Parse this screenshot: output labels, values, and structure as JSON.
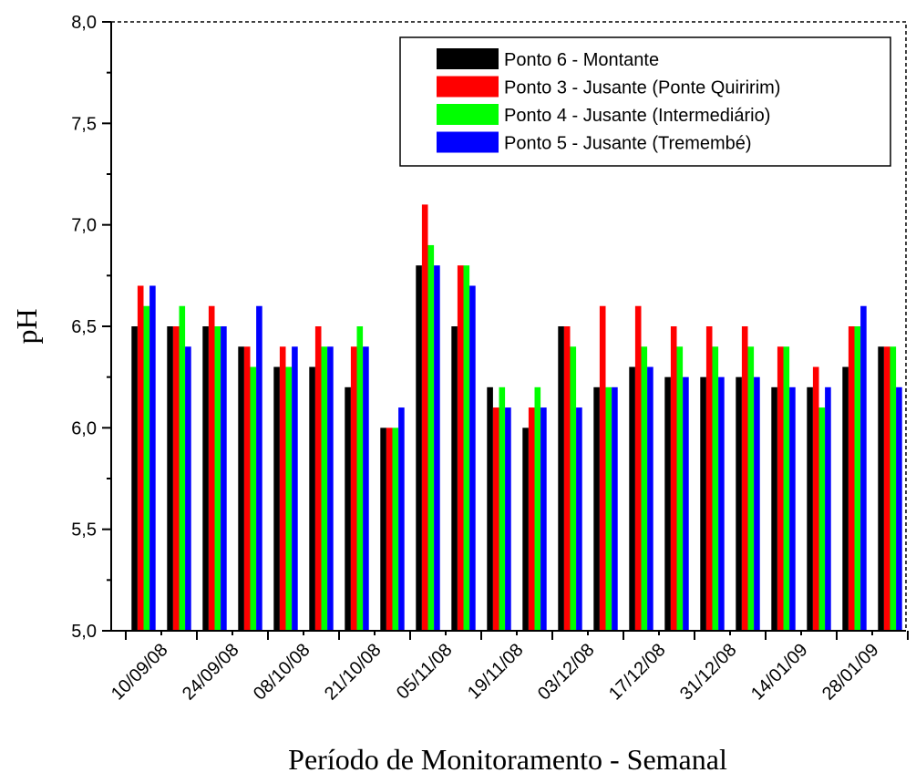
{
  "chart_data": {
    "type": "bar",
    "xlabel": "Período de Monitoramento - Semanal",
    "ylabel": "pH",
    "ylim": [
      5.0,
      8.0
    ],
    "yticks": [
      "5,0",
      "5,5",
      "6,0",
      "6,5",
      "7,0",
      "7,5",
      "8,0"
    ],
    "ytick_values": [
      5.0,
      5.5,
      6.0,
      6.5,
      7.0,
      7.5,
      8.0
    ],
    "x_tick_labels": [
      "10/09/08",
      "24/09/08",
      "08/10/08",
      "21/10/08",
      "05/11/08",
      "19/11/08",
      "03/12/08",
      "17/12/08",
      "31/12/08",
      "14/01/09",
      "28/01/09"
    ],
    "n_groups": 22,
    "grid": false,
    "legend_position": "top-right",
    "series": [
      {
        "name": "Ponto 6 - Montante",
        "color": "#000000",
        "values": [
          6.5,
          6.5,
          6.5,
          6.4,
          6.3,
          6.3,
          6.2,
          6.0,
          6.8,
          6.5,
          6.2,
          6.0,
          6.5,
          6.2,
          6.3,
          6.25,
          6.25,
          6.25,
          6.2,
          6.2,
          6.3,
          6.4
        ]
      },
      {
        "name": "Ponto 3 - Jusante (Ponte Quiririm)",
        "color": "#ff0000",
        "values": [
          6.7,
          6.5,
          6.6,
          6.4,
          6.4,
          6.5,
          6.4,
          6.0,
          7.1,
          6.8,
          6.1,
          6.1,
          6.5,
          6.6,
          6.6,
          6.5,
          6.5,
          6.5,
          6.4,
          6.3,
          6.5,
          6.4
        ]
      },
      {
        "name": "Ponto 4 - Jusante (Intermediário)",
        "color": "#00ff00",
        "values": [
          6.6,
          6.6,
          6.5,
          6.3,
          6.3,
          6.4,
          6.5,
          6.0,
          6.9,
          6.8,
          6.2,
          6.2,
          6.4,
          6.2,
          6.4,
          6.4,
          6.4,
          6.4,
          6.4,
          6.1,
          6.5,
          6.4
        ]
      },
      {
        "name": "Ponto 5 - Jusante (Tremembé)",
        "color": "#0000ff",
        "values": [
          6.7,
          6.4,
          6.5,
          6.6,
          6.4,
          6.4,
          6.4,
          6.1,
          6.8,
          6.7,
          6.1,
          6.1,
          6.1,
          6.2,
          6.3,
          6.25,
          6.25,
          6.25,
          6.2,
          6.2,
          6.6,
          6.2
        ]
      }
    ]
  }
}
